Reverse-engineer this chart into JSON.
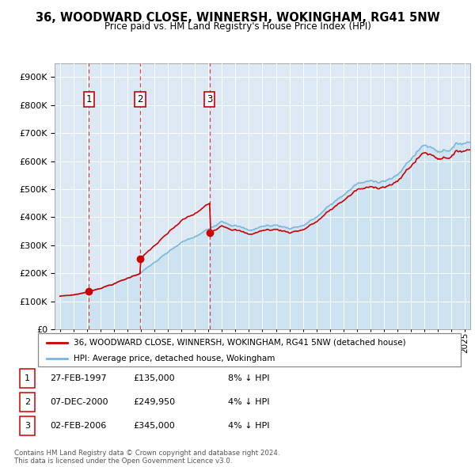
{
  "title": "36, WOODWARD CLOSE, WINNERSH, WOKINGHAM, RG41 5NW",
  "subtitle": "Price paid vs. HM Land Registry's House Price Index (HPI)",
  "bg_color": "#dce9f5",
  "hpi_color": "#7ab8d9",
  "hpi_fill_color": "#c5dff0",
  "price_color": "#cc0000",
  "purchase_dates": [
    1997.15,
    2000.93,
    2006.09
  ],
  "purchase_prices": [
    135000,
    249950,
    345000
  ],
  "purchase_labels": [
    "1",
    "2",
    "3"
  ],
  "legend_price_label": "36, WOODWARD CLOSE, WINNERSH, WOKINGHAM, RG41 5NW (detached house)",
  "legend_hpi_label": "HPI: Average price, detached house, Wokingham",
  "table_entries": [
    {
      "label": "1",
      "date": "27-FEB-1997",
      "price": "£135,000",
      "hpi": "8% ↓ HPI"
    },
    {
      "label": "2",
      "date": "07-DEC-2000",
      "price": "£249,950",
      "hpi": "4% ↓ HPI"
    },
    {
      "label": "3",
      "date": "02-FEB-2006",
      "price": "£345,000",
      "hpi": "4% ↓ HPI"
    }
  ],
  "footer": "Contains HM Land Registry data © Crown copyright and database right 2024.\nThis data is licensed under the Open Government Licence v3.0.",
  "ylim": [
    0,
    950000
  ],
  "yticks": [
    0,
    100000,
    200000,
    300000,
    400000,
    500000,
    600000,
    700000,
    800000,
    900000
  ],
  "xlim_start": 1994.6,
  "xlim_end": 2025.4
}
